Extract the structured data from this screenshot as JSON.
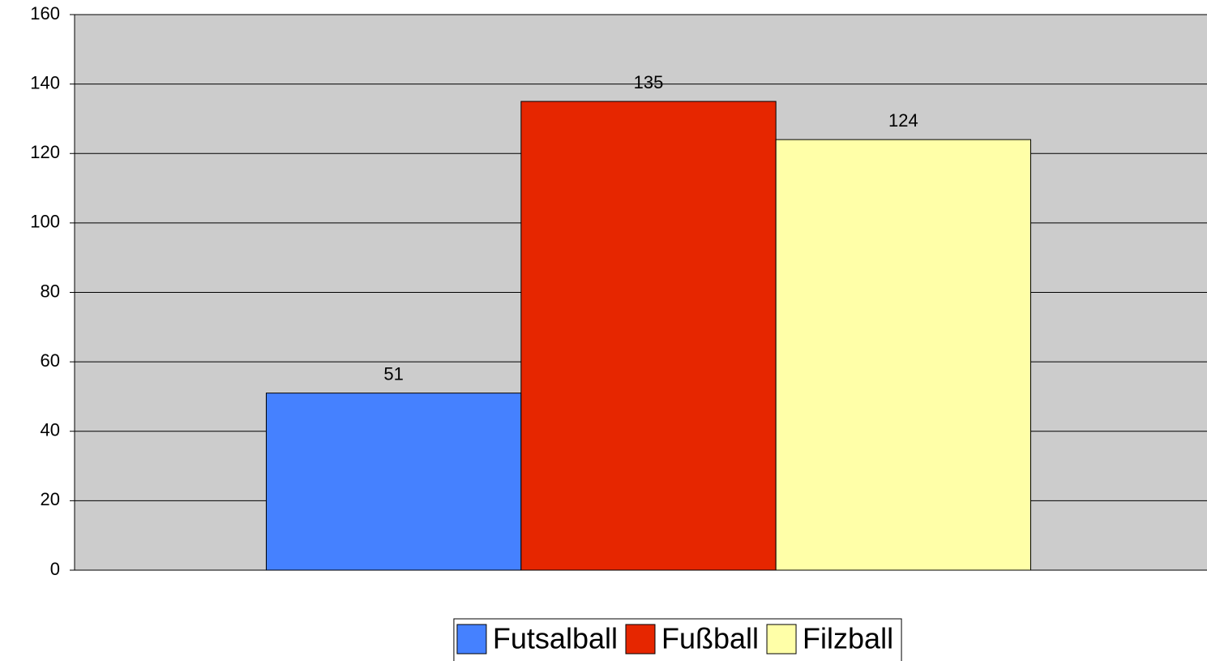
{
  "chart_data": {
    "type": "bar",
    "categories": [
      null
    ],
    "series": [
      {
        "name": "Futsalball",
        "color": "#4581ff",
        "values": [
          51
        ]
      },
      {
        "name": "Fußball",
        "color": "#e62600",
        "values": [
          135
        ]
      },
      {
        "name": "Filzball",
        "color": "#ffffa8",
        "values": [
          124
        ]
      }
    ],
    "ylim": [
      0,
      160
    ],
    "yticks": [
      0,
      20,
      40,
      60,
      80,
      100,
      120,
      140,
      160
    ],
    "grid": true,
    "legend": "bottom",
    "plot_background": "#cccccc"
  }
}
